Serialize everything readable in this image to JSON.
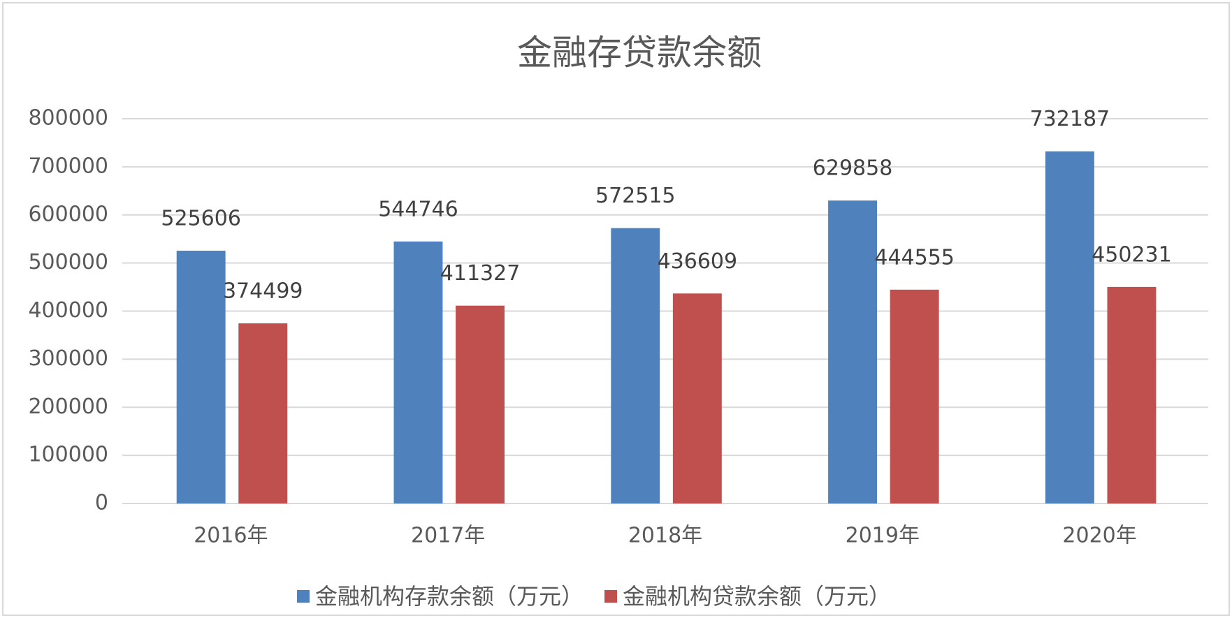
{
  "chart_data": {
    "type": "bar",
    "title": "金融存贷款余额",
    "categories": [
      "2016年",
      "2017年",
      "2018年",
      "2019年",
      "2020年"
    ],
    "series": [
      {
        "name": "金融机构存款余额（万元）",
        "color": "#4f81bd",
        "values": [
          525606,
          544746,
          572515,
          629858,
          732187
        ]
      },
      {
        "name": "金融机构贷款余额（万元）",
        "color": "#c0504d",
        "values": [
          374499,
          411327,
          436609,
          444555,
          450231
        ]
      }
    ],
    "ylim": [
      0,
      800000
    ],
    "yticks": [
      0,
      100000,
      200000,
      300000,
      400000,
      500000,
      600000,
      700000,
      800000
    ],
    "grid": true,
    "legend": "bottom"
  }
}
